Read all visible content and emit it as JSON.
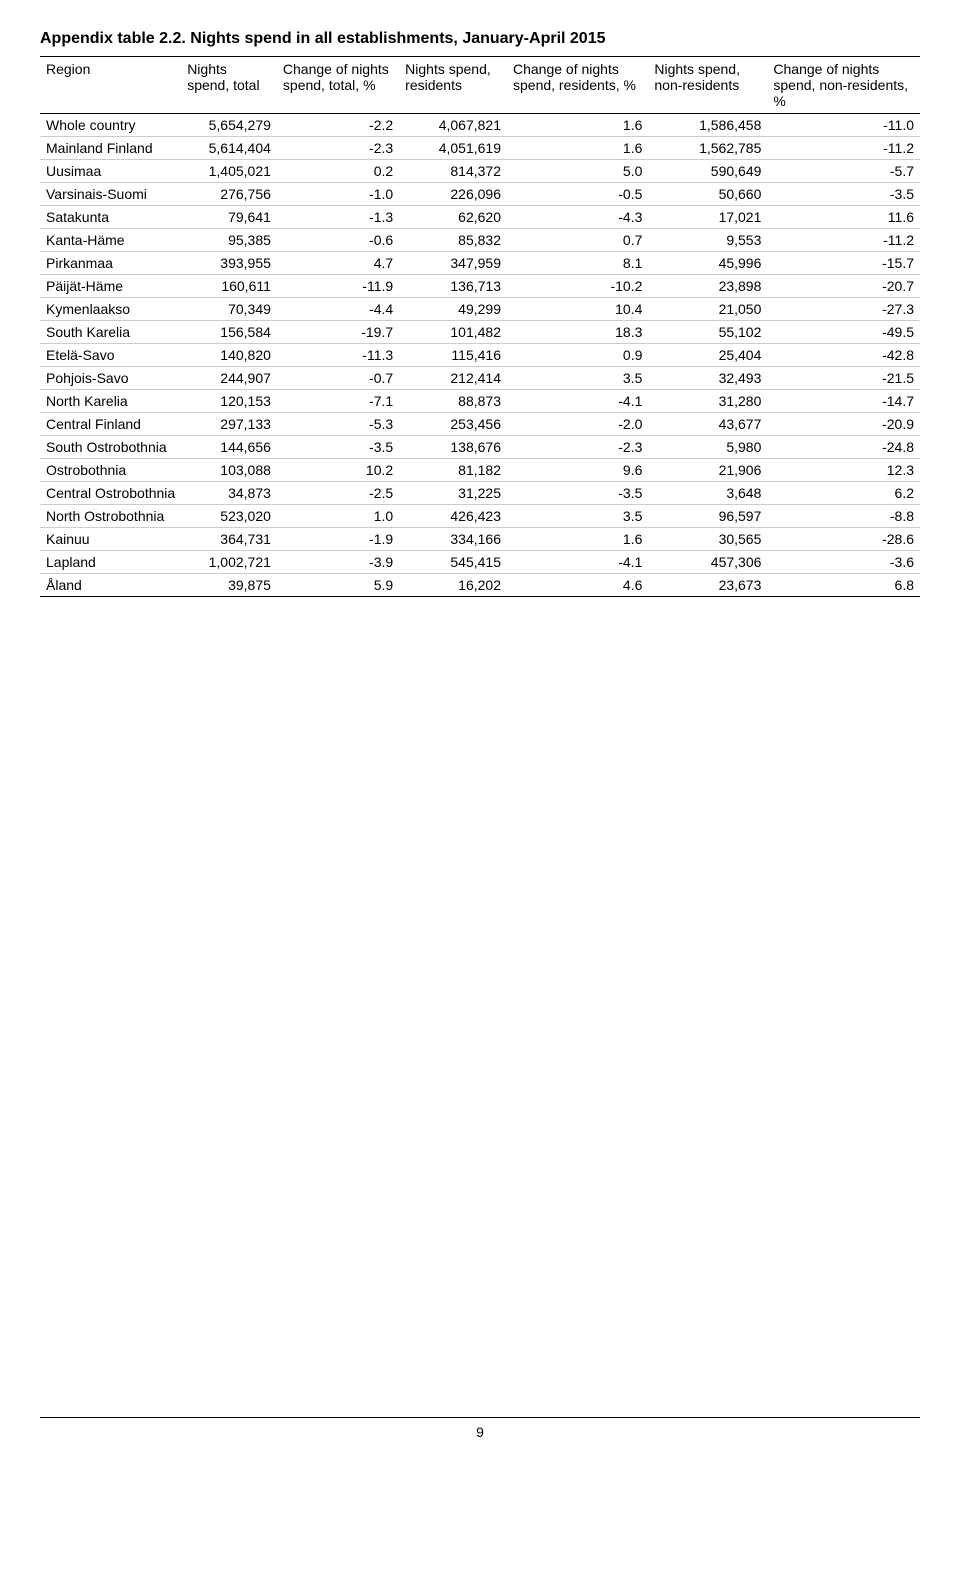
{
  "title": "Appendix table 2.2. Nights spend in all establishments, January-April 2015",
  "columns": [
    "Region",
    "Nights spend, total",
    "Change of nights spend, total, %",
    "Nights spend, residents",
    "Change of nights spend, residents, %",
    "Nights spend, non-residents",
    "Change of nights spend, non-residents, %"
  ],
  "rows": [
    {
      "region": "Whole country",
      "c1": "5,654,279",
      "c2": "-2.2",
      "c3": "4,067,821",
      "c4": "1.6",
      "c5": "1,586,458",
      "c6": "-11.0"
    },
    {
      "region": "Mainland Finland",
      "c1": "5,614,404",
      "c2": "-2.3",
      "c3": "4,051,619",
      "c4": "1.6",
      "c5": "1,562,785",
      "c6": "-11.2"
    },
    {
      "region": "Uusimaa",
      "c1": "1,405,021",
      "c2": "0.2",
      "c3": "814,372",
      "c4": "5.0",
      "c5": "590,649",
      "c6": "-5.7"
    },
    {
      "region": "Varsinais-Suomi",
      "c1": "276,756",
      "c2": "-1.0",
      "c3": "226,096",
      "c4": "-0.5",
      "c5": "50,660",
      "c6": "-3.5"
    },
    {
      "region": "Satakunta",
      "c1": "79,641",
      "c2": "-1.3",
      "c3": "62,620",
      "c4": "-4.3",
      "c5": "17,021",
      "c6": "11.6"
    },
    {
      "region": "Kanta-Häme",
      "c1": "95,385",
      "c2": "-0.6",
      "c3": "85,832",
      "c4": "0.7",
      "c5": "9,553",
      "c6": "-11.2"
    },
    {
      "region": "Pirkanmaa",
      "c1": "393,955",
      "c2": "4.7",
      "c3": "347,959",
      "c4": "8.1",
      "c5": "45,996",
      "c6": "-15.7"
    },
    {
      "region": "Päijät-Häme",
      "c1": "160,611",
      "c2": "-11.9",
      "c3": "136,713",
      "c4": "-10.2",
      "c5": "23,898",
      "c6": "-20.7"
    },
    {
      "region": "Kymenlaakso",
      "c1": "70,349",
      "c2": "-4.4",
      "c3": "49,299",
      "c4": "10.4",
      "c5": "21,050",
      "c6": "-27.3"
    },
    {
      "region": "South Karelia",
      "c1": "156,584",
      "c2": "-19.7",
      "c3": "101,482",
      "c4": "18.3",
      "c5": "55,102",
      "c6": "-49.5"
    },
    {
      "region": "Etelä-Savo",
      "c1": "140,820",
      "c2": "-11.3",
      "c3": "115,416",
      "c4": "0.9",
      "c5": "25,404",
      "c6": "-42.8"
    },
    {
      "region": "Pohjois-Savo",
      "c1": "244,907",
      "c2": "-0.7",
      "c3": "212,414",
      "c4": "3.5",
      "c5": "32,493",
      "c6": "-21.5"
    },
    {
      "region": "North Karelia",
      "c1": "120,153",
      "c2": "-7.1",
      "c3": "88,873",
      "c4": "-4.1",
      "c5": "31,280",
      "c6": "-14.7"
    },
    {
      "region": "Central Finland",
      "c1": "297,133",
      "c2": "-5.3",
      "c3": "253,456",
      "c4": "-2.0",
      "c5": "43,677",
      "c6": "-20.9"
    },
    {
      "region": "South Ostrobothnia",
      "c1": "144,656",
      "c2": "-3.5",
      "c3": "138,676",
      "c4": "-2.3",
      "c5": "5,980",
      "c6": "-24.8"
    },
    {
      "region": "Ostrobothnia",
      "c1": "103,088",
      "c2": "10.2",
      "c3": "81,182",
      "c4": "9.6",
      "c5": "21,906",
      "c6": "12.3"
    },
    {
      "region": "Central Ostrobothnia",
      "c1": "34,873",
      "c2": "-2.5",
      "c3": "31,225",
      "c4": "-3.5",
      "c5": "3,648",
      "c6": "6.2"
    },
    {
      "region": "North Ostrobothnia",
      "c1": "523,020",
      "c2": "1.0",
      "c3": "426,423",
      "c4": "3.5",
      "c5": "96,597",
      "c6": "-8.8"
    },
    {
      "region": "Kainuu",
      "c1": "364,731",
      "c2": "-1.9",
      "c3": "334,166",
      "c4": "1.6",
      "c5": "30,565",
      "c6": "-28.6"
    },
    {
      "region": "Lapland",
      "c1": "1,002,721",
      "c2": "-3.9",
      "c3": "545,415",
      "c4": "-4.1",
      "c5": "457,306",
      "c6": "-3.6"
    },
    {
      "region": "Åland",
      "c1": "39,875",
      "c2": "5.9",
      "c3": "16,202",
      "c4": "4.6",
      "c5": "23,673",
      "c6": "6.8"
    }
  ],
  "page_number": "9"
}
